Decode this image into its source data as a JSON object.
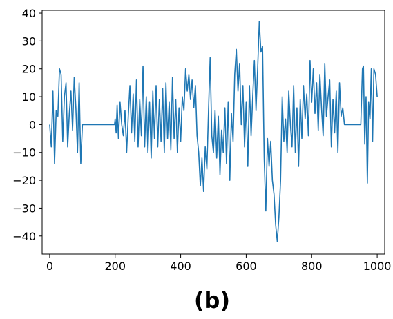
{
  "chart_data": {
    "type": "line",
    "caption": "(b)",
    "xlim": [
      -23,
      1023
    ],
    "ylim": [
      -46.5,
      41
    ],
    "xticks": [
      0,
      200,
      400,
      600,
      800,
      1000
    ],
    "yticks": [
      -40,
      -30,
      -20,
      -10,
      0,
      10,
      20,
      30,
      40
    ],
    "grid": false,
    "series_color": "#1f77b4",
    "anchors": [
      [
        0,
        0
      ],
      [
        5,
        -8
      ],
      [
        10,
        12
      ],
      [
        15,
        -14
      ],
      [
        20,
        5
      ],
      [
        25,
        3
      ],
      [
        30,
        20
      ],
      [
        35,
        18
      ],
      [
        40,
        -6
      ],
      [
        45,
        10
      ],
      [
        50,
        15
      ],
      [
        55,
        -8
      ],
      [
        60,
        4
      ],
      [
        65,
        12
      ],
      [
        70,
        -2
      ],
      [
        75,
        17
      ],
      [
        80,
        6
      ],
      [
        85,
        -10
      ],
      [
        90,
        15
      ],
      [
        95,
        -14
      ],
      [
        100,
        0
      ],
      [
        198,
        0
      ],
      [
        200,
        2
      ],
      [
        203,
        -3
      ],
      [
        206,
        7
      ],
      [
        210,
        -5
      ],
      [
        215,
        8
      ],
      [
        220,
        0
      ],
      [
        225,
        -4
      ],
      [
        230,
        5
      ],
      [
        235,
        -10
      ],
      [
        240,
        3
      ],
      [
        245,
        14
      ],
      [
        250,
        -3
      ],
      [
        255,
        11
      ],
      [
        260,
        -6
      ],
      [
        265,
        16
      ],
      [
        270,
        -8
      ],
      [
        275,
        9
      ],
      [
        280,
        -4
      ],
      [
        285,
        21
      ],
      [
        290,
        -8
      ],
      [
        295,
        10
      ],
      [
        300,
        -10
      ],
      [
        305,
        8
      ],
      [
        310,
        -12
      ],
      [
        315,
        12
      ],
      [
        320,
        -5
      ],
      [
        325,
        14
      ],
      [
        330,
        -8
      ],
      [
        335,
        9
      ],
      [
        340,
        -6
      ],
      [
        345,
        13
      ],
      [
        350,
        -10
      ],
      [
        355,
        15
      ],
      [
        360,
        -5
      ],
      [
        365,
        8
      ],
      [
        370,
        -9
      ],
      [
        375,
        17
      ],
      [
        380,
        -5
      ],
      [
        385,
        9
      ],
      [
        390,
        -10
      ],
      [
        395,
        6
      ],
      [
        400,
        -6
      ],
      [
        405,
        10
      ],
      [
        410,
        5
      ],
      [
        415,
        20
      ],
      [
        420,
        12
      ],
      [
        425,
        18
      ],
      [
        430,
        9
      ],
      [
        435,
        16
      ],
      [
        440,
        6
      ],
      [
        445,
        14
      ],
      [
        450,
        -4
      ],
      [
        455,
        -10
      ],
      [
        460,
        -22
      ],
      [
        465,
        -12
      ],
      [
        470,
        -24
      ],
      [
        475,
        -8
      ],
      [
        480,
        -16
      ],
      [
        485,
        5
      ],
      [
        490,
        24
      ],
      [
        495,
        -4
      ],
      [
        500,
        -10
      ],
      [
        505,
        5
      ],
      [
        510,
        -12
      ],
      [
        515,
        3
      ],
      [
        520,
        -18
      ],
      [
        525,
        -2
      ],
      [
        530,
        -10
      ],
      [
        535,
        6
      ],
      [
        540,
        -14
      ],
      [
        545,
        8
      ],
      [
        550,
        -20
      ],
      [
        555,
        4
      ],
      [
        560,
        -6
      ],
      [
        565,
        18
      ],
      [
        570,
        27
      ],
      [
        575,
        12
      ],
      [
        580,
        22
      ],
      [
        585,
        0
      ],
      [
        590,
        14
      ],
      [
        595,
        -8
      ],
      [
        600,
        8
      ],
      [
        605,
        -15
      ],
      [
        610,
        14
      ],
      [
        615,
        -4
      ],
      [
        620,
        10
      ],
      [
        625,
        23
      ],
      [
        630,
        5
      ],
      [
        635,
        20
      ],
      [
        640,
        37
      ],
      [
        645,
        26
      ],
      [
        650,
        28
      ],
      [
        655,
        -12
      ],
      [
        660,
        -31
      ],
      [
        665,
        -5
      ],
      [
        670,
        -15
      ],
      [
        675,
        -6
      ],
      [
        680,
        -20
      ],
      [
        685,
        -25
      ],
      [
        690,
        -36
      ],
      [
        695,
        -42
      ],
      [
        700,
        -33
      ],
      [
        705,
        -20
      ],
      [
        710,
        10
      ],
      [
        715,
        -6
      ],
      [
        720,
        2
      ],
      [
        725,
        -10
      ],
      [
        730,
        12
      ],
      [
        735,
        0
      ],
      [
        740,
        -8
      ],
      [
        745,
        14
      ],
      [
        750,
        -10
      ],
      [
        755,
        6
      ],
      [
        760,
        -15
      ],
      [
        765,
        9
      ],
      [
        770,
        -5
      ],
      [
        775,
        14
      ],
      [
        780,
        2
      ],
      [
        785,
        11
      ],
      [
        790,
        -4
      ],
      [
        795,
        23
      ],
      [
        800,
        8
      ],
      [
        805,
        20
      ],
      [
        810,
        4
      ],
      [
        815,
        15
      ],
      [
        820,
        -2
      ],
      [
        825,
        18
      ],
      [
        830,
        6
      ],
      [
        835,
        -4
      ],
      [
        840,
        22
      ],
      [
        845,
        3
      ],
      [
        850,
        10
      ],
      [
        855,
        16
      ],
      [
        860,
        -8
      ],
      [
        865,
        9
      ],
      [
        870,
        -3
      ],
      [
        875,
        12
      ],
      [
        880,
        -10
      ],
      [
        885,
        15
      ],
      [
        890,
        3
      ],
      [
        895,
        6
      ],
      [
        900,
        0
      ],
      [
        950,
        0
      ],
      [
        955,
        20
      ],
      [
        958,
        21
      ],
      [
        962,
        -7
      ],
      [
        966,
        10
      ],
      [
        970,
        -21
      ],
      [
        974,
        8
      ],
      [
        978,
        2
      ],
      [
        982,
        20
      ],
      [
        986,
        -6
      ],
      [
        990,
        20
      ],
      [
        995,
        18
      ],
      [
        1000,
        10
      ]
    ]
  }
}
